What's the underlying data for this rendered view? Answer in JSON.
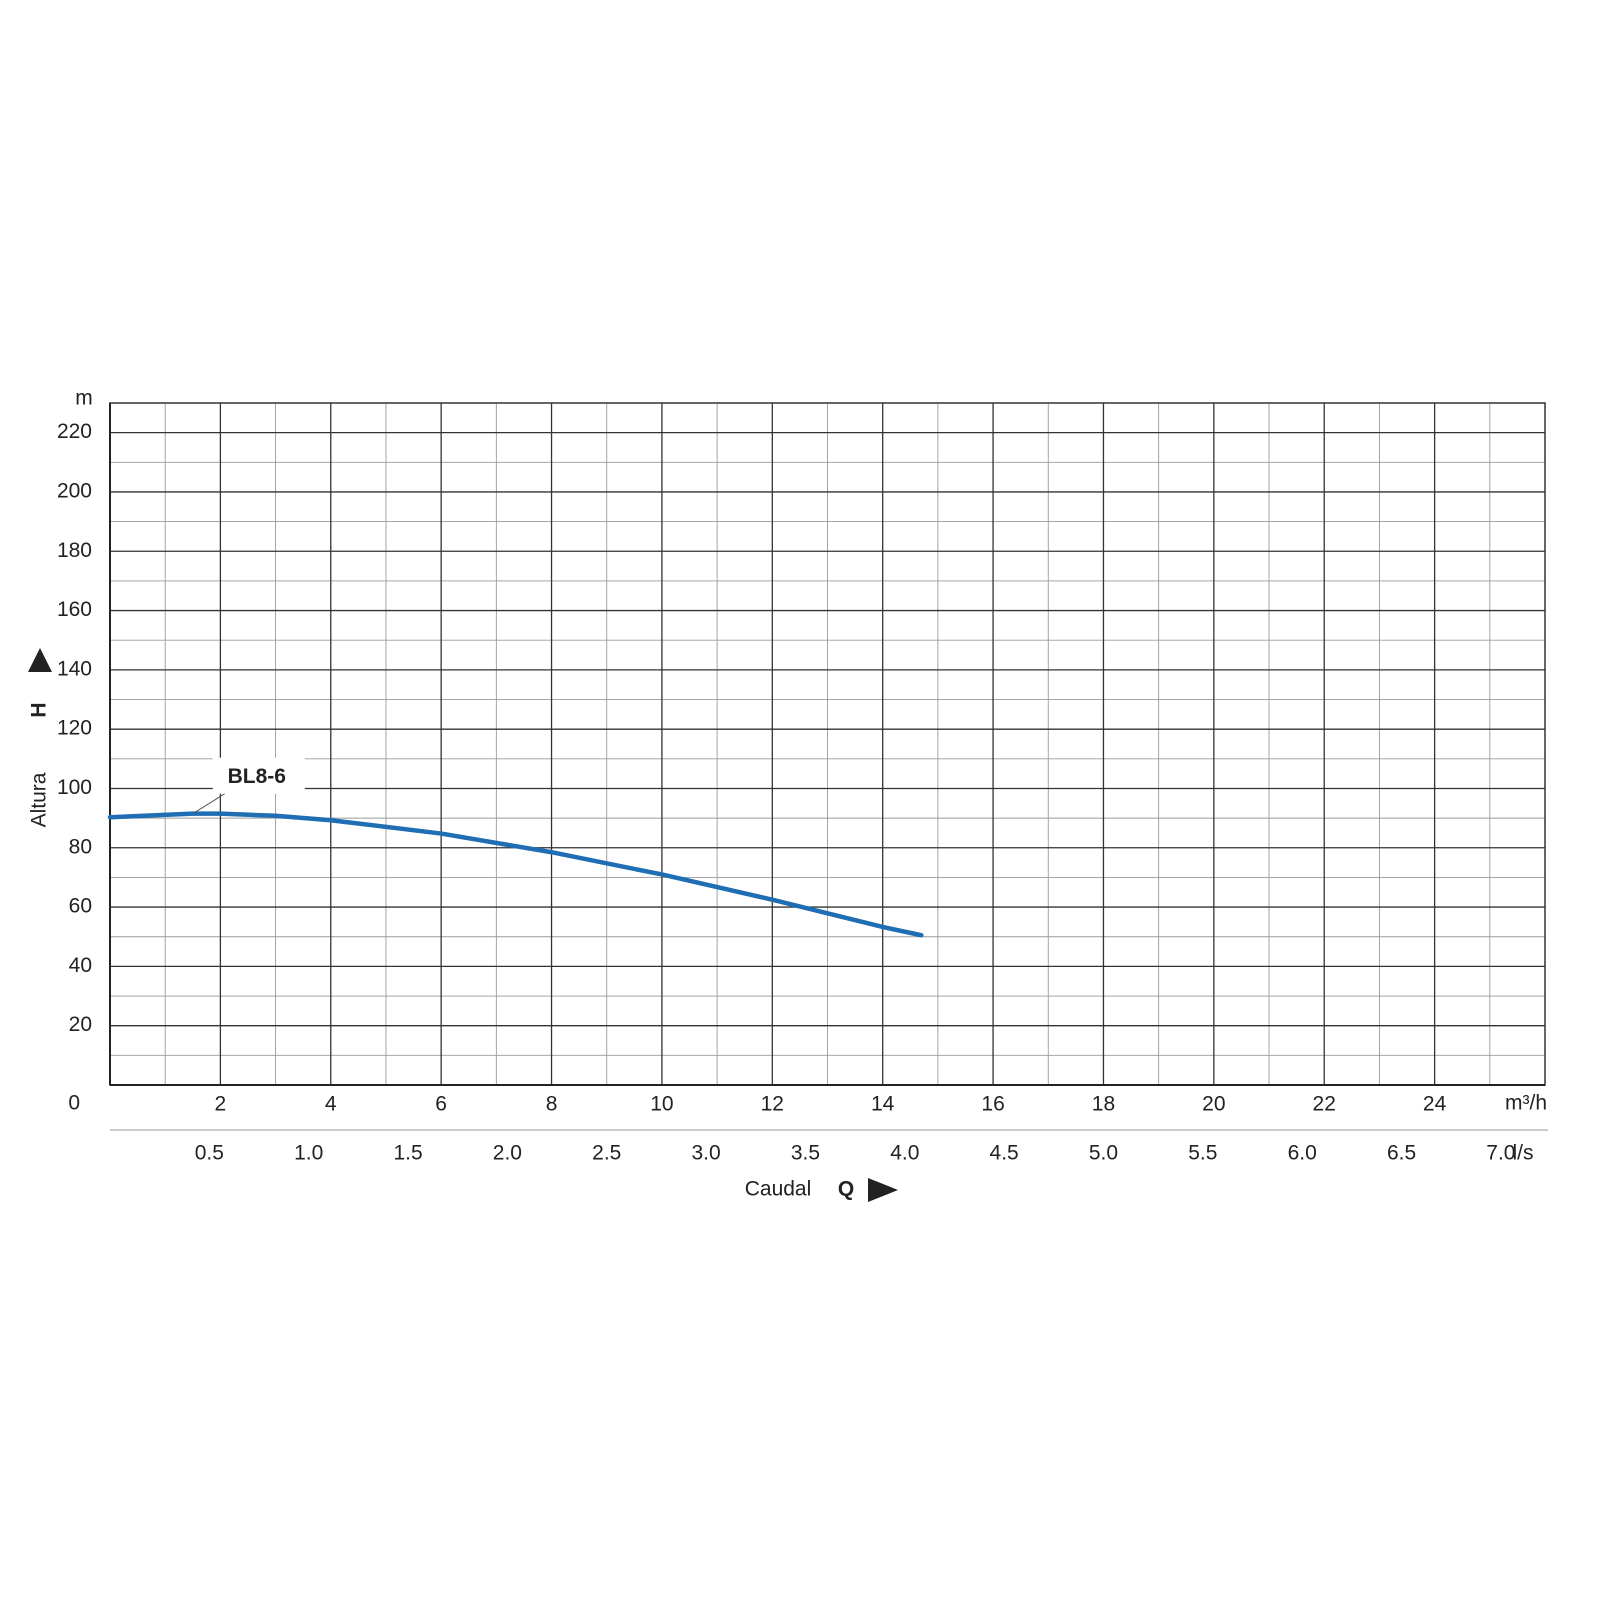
{
  "chart_data": {
    "type": "line",
    "y_label": "Altura",
    "y_label_symbol": "H",
    "y_unit": "m",
    "x_label": "Caudal",
    "x_label_symbol": "Q",
    "x_unit": "m³/h",
    "x2_unit": "l/s",
    "x": [
      0,
      1.5,
      2,
      3,
      4,
      6,
      8,
      10,
      12,
      14,
      14.7
    ],
    "series": [
      {
        "name": "BL8-6",
        "color": "#1f6db3",
        "values": [
          90.3,
          91.5,
          91.5,
          90.8,
          89.3,
          84.8,
          78.5,
          71,
          62.5,
          53.3,
          50.5
        ]
      }
    ],
    "xlim": [
      0,
      26
    ],
    "xticks": [
      2,
      4,
      6,
      8,
      10,
      12,
      14,
      16,
      18,
      20,
      22,
      24
    ],
    "x2lim": [
      0,
      7.222
    ],
    "x2ticks": [
      0.5,
      {
        "value": 1,
        "label": "1.0"
      },
      1.5,
      {
        "value": 2,
        "label": "2.0"
      },
      2.5,
      {
        "value": 3,
        "label": "3.0"
      },
      3.5,
      {
        "value": 4,
        "label": "4.0"
      },
      4.5,
      {
        "value": 5,
        "label": "5.0"
      },
      5.5,
      {
        "value": 6,
        "label": "6.0"
      },
      6.5,
      {
        "value": 7,
        "label": "7.0"
      }
    ],
    "ylim": [
      0,
      230
    ],
    "yticks": [
      0,
      20,
      40,
      60,
      80,
      100,
      120,
      140,
      160,
      180,
      200,
      220
    ],
    "grid": true,
    "minor_grid": true
  }
}
